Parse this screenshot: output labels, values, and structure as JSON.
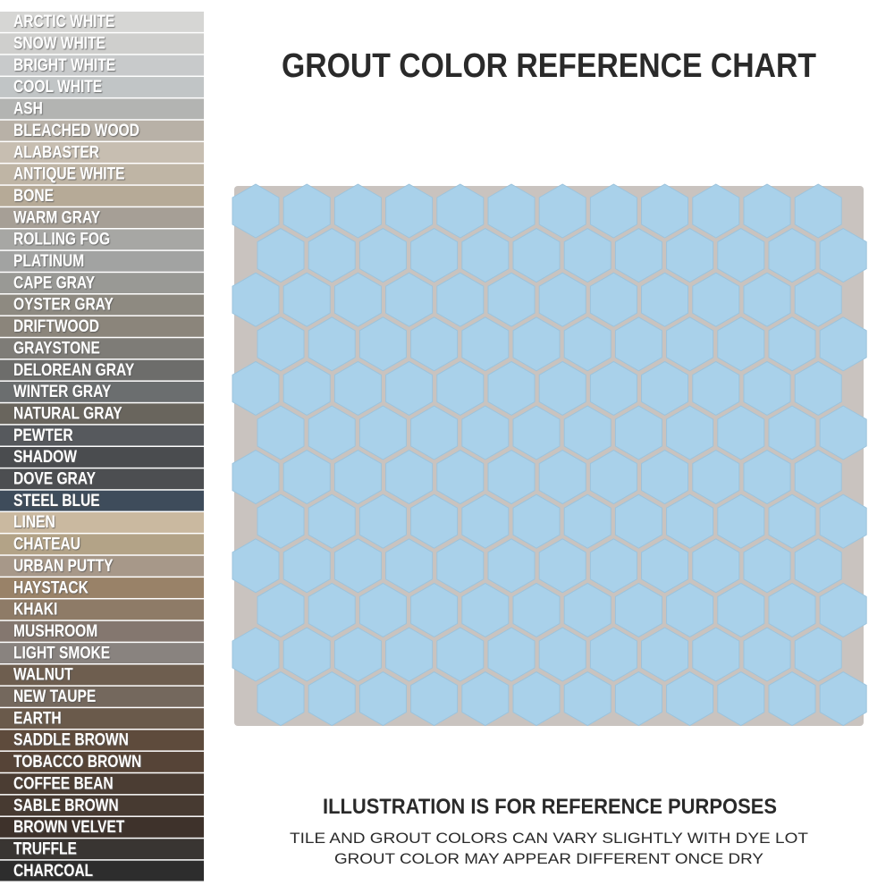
{
  "header": {
    "title": "GROUT COLOR REFERENCE CHART"
  },
  "grout_colors": [
    {
      "name": "ARCTIC WHITE",
      "color": "#d6d6d4"
    },
    {
      "name": "SNOW WHITE",
      "color": "#cfcfcd"
    },
    {
      "name": "BRIGHT WHITE",
      "color": "#c8cacb"
    },
    {
      "name": "COOL WHITE",
      "color": "#c1c5c6"
    },
    {
      "name": "ASH",
      "color": "#b3b4b2"
    },
    {
      "name": "BLEACHED WOOD",
      "color": "#b8b1a7"
    },
    {
      "name": "ALABASTER",
      "color": "#c7beb1"
    },
    {
      "name": "ANTIQUE WHITE",
      "color": "#bfb5a5"
    },
    {
      "name": "BONE",
      "color": "#b6aa97"
    },
    {
      "name": "WARM GRAY",
      "color": "#a69f96"
    },
    {
      "name": "ROLLING FOG",
      "color": "#a7a7a4"
    },
    {
      "name": "PLATINUM",
      "color": "#a2a3a2"
    },
    {
      "name": "CAPE GRAY",
      "color": "#999995"
    },
    {
      "name": "OYSTER GRAY",
      "color": "#8e8a81"
    },
    {
      "name": "DRIFTWOOD",
      "color": "#8b857b"
    },
    {
      "name": "GRAYSTONE",
      "color": "#7e7c77"
    },
    {
      "name": "DELOREAN GRAY",
      "color": "#6d6d6b"
    },
    {
      "name": "WINTER GRAY",
      "color": "#6b6e6f"
    },
    {
      "name": "NATURAL GRAY",
      "color": "#69655d"
    },
    {
      "name": "PEWTER",
      "color": "#56595d"
    },
    {
      "name": "SHADOW",
      "color": "#4a4c4f"
    },
    {
      "name": "DOVE GRAY",
      "color": "#4c4e51"
    },
    {
      "name": "STEEL BLUE",
      "color": "#3e4c5b"
    },
    {
      "name": "LINEN",
      "color": "#cab9a0"
    },
    {
      "name": "CHATEAU",
      "color": "#b3a387"
    },
    {
      "name": "URBAN PUTTY",
      "color": "#a79889"
    },
    {
      "name": "HAYSTACK",
      "color": "#998268"
    },
    {
      "name": "KHAKI",
      "color": "#8e7b67"
    },
    {
      "name": "MUSHROOM",
      "color": "#84776f"
    },
    {
      "name": "LIGHT SMOKE",
      "color": "#89837f"
    },
    {
      "name": "WALNUT",
      "color": "#6e5e4f"
    },
    {
      "name": "NEW TAUPE",
      "color": "#74685d"
    },
    {
      "name": "EARTH",
      "color": "#6a5a4b"
    },
    {
      "name": "SADDLE BROWN",
      "color": "#5e4b3c"
    },
    {
      "name": "TOBACCO BROWN",
      "color": "#564437"
    },
    {
      "name": "COFFEE BEAN",
      "color": "#4b3d33"
    },
    {
      "name": "SABLE BROWN",
      "color": "#473a31"
    },
    {
      "name": "BROWN VELVET",
      "color": "#3e322b"
    },
    {
      "name": "TRUFFLE",
      "color": "#393532"
    },
    {
      "name": "CHARCOAL",
      "color": "#2d2d2d"
    }
  ],
  "footer": {
    "heading": "ILLUSTRATION IS FOR REFERENCE PURPOSES",
    "lines": [
      "TILE AND GROUT COLORS CAN VARY SLIGHTLY WITH DYE LOT",
      "GROUT COLOR MAY APPEAR DIFFERENT ONCE DRY"
    ]
  }
}
